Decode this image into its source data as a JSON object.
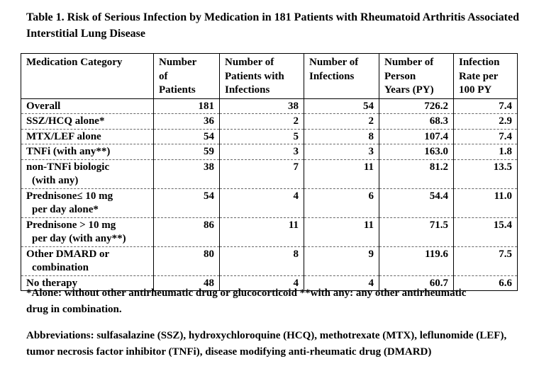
{
  "title": "Table 1. Risk of Serious Infection by Medication in 181 Patients with Rheumatoid Arthritis Associated Interstitial Lung Disease",
  "table": {
    "header": [
      [
        "Medication Category"
      ],
      [
        "Number",
        "of",
        "Patients"
      ],
      [
        "Number of",
        "Patients with",
        "Infections"
      ],
      [
        "Number of",
        "Infections"
      ],
      [
        "Number of",
        "Person",
        "Years (PY)"
      ],
      [
        "Infection",
        "Rate per",
        "100 PY"
      ]
    ],
    "rows": [
      [
        [
          "Overall"
        ],
        "181",
        "38",
        "54",
        "726.2",
        "7.4"
      ],
      [
        [
          "SSZ/HCQ alone*"
        ],
        "36",
        "2",
        "2",
        "68.3",
        "2.9"
      ],
      [
        [
          "MTX/LEF alone"
        ],
        "54",
        "5",
        "8",
        "107.4",
        "7.4"
      ],
      [
        [
          "TNFi (with any**)"
        ],
        "59",
        "3",
        "3",
        "163.0",
        "1.8"
      ],
      [
        [
          "non-TNFi biologic",
          "(with any)"
        ],
        "38",
        "7",
        "11",
        "81.2",
        "13.5"
      ],
      [
        [
          "Prednisone≤ 10 mg",
          "per day alone*"
        ],
        "54",
        "4",
        "6",
        "54.4",
        "11.0"
      ],
      [
        [
          "Prednisone > 10 mg",
          "per day (with any**)"
        ],
        "86",
        "11",
        "11",
        "71.5",
        "15.4"
      ],
      [
        [
          "Other DMARD or",
          "combination"
        ],
        "80",
        "8",
        "9",
        "119.6",
        "7.5"
      ],
      [
        [
          "No therapy"
        ],
        "48",
        "4",
        "4",
        "60.7",
        "6.6"
      ]
    ]
  },
  "footnote": "*Alone: without other antirheumatic drug or glucocorticoid **with any: any other antirheumatic drug in combination.",
  "abbreviations": "Abbreviations: sulfasalazine (SSZ), hydroxychloroquine (HCQ), methotrexate (MTX), leflunomide (LEF), tumor necrosis factor inhibitor (TNFi), disease modifying anti-rheumatic drug (DMARD)"
}
